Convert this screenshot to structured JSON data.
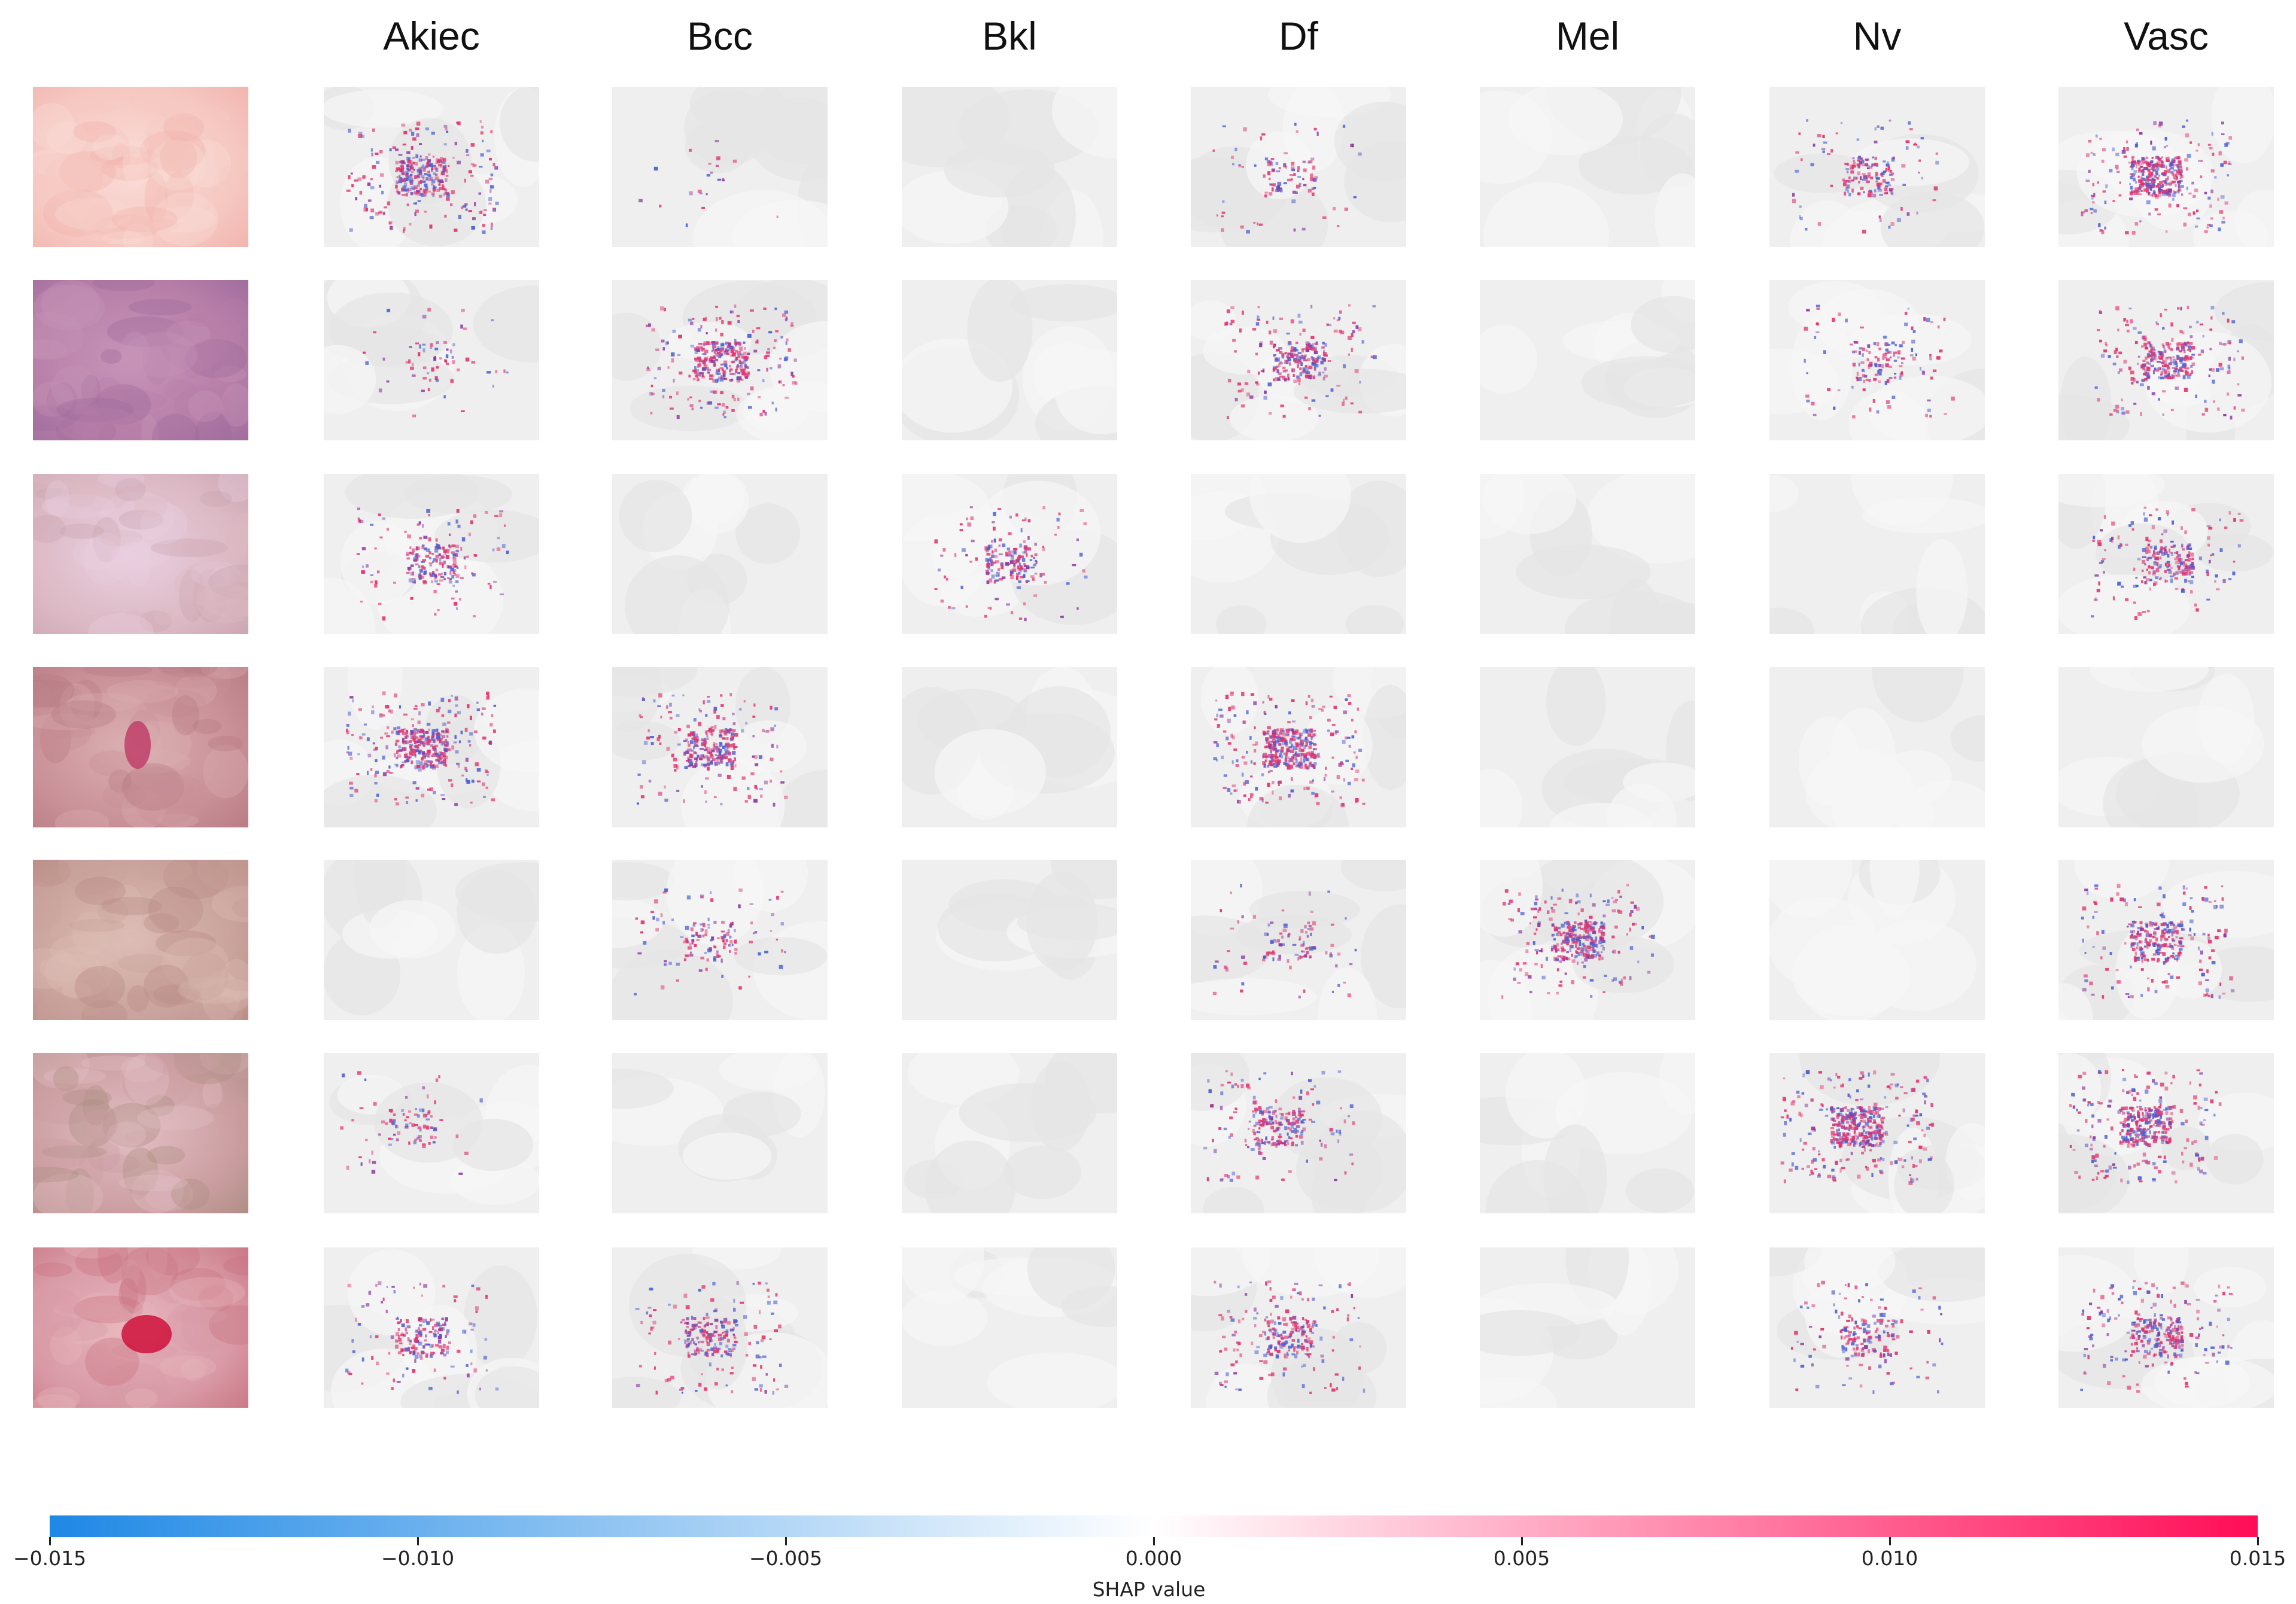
{
  "figure": {
    "columns": [
      "Akiec",
      "Bcc",
      "Bkl",
      "Df",
      "Mel",
      "Nv",
      "Vasc"
    ],
    "rows": [
      {
        "original_tone": [
          "#f6c8c2",
          "#f0b1aa",
          "#fadcd6"
        ],
        "intensity": [
          0.8,
          0.05,
          0.0,
          0.25,
          0.0,
          0.4,
          0.9
        ]
      },
      {
        "original_tone": [
          "#b77fa8",
          "#9b6a9c",
          "#c794b8"
        ],
        "intensity": [
          0.15,
          0.8,
          0.0,
          0.6,
          0.0,
          0.35,
          0.7
        ]
      },
      {
        "original_tone": [
          "#dcb9c4",
          "#c9a3b0",
          "#e9cfe0"
        ],
        "intensity": [
          0.5,
          0.0,
          0.45,
          0.0,
          0.0,
          0.0,
          0.55
        ]
      },
      {
        "original_tone": [
          "#c99098",
          "#b57880",
          "#dbb0b3"
        ],
        "intensity": [
          0.9,
          0.7,
          0.0,
          1.0,
          0.0,
          0.0,
          0.0
        ]
      },
      {
        "original_tone": [
          "#c9a39c",
          "#b88a84",
          "#dcbdb5"
        ],
        "intensity": [
          0.0,
          0.3,
          0.0,
          0.25,
          0.8,
          0.0,
          0.7
        ]
      },
      {
        "original_tone": [
          "#cc9fa2",
          "#a98b7f",
          "#e2bfc5"
        ],
        "intensity": [
          0.2,
          0.0,
          0.0,
          0.55,
          0.0,
          1.0,
          0.9
        ]
      },
      {
        "original_tone": [
          "#d89aa6",
          "#c8707f",
          "#e7b6be"
        ],
        "intensity": [
          0.45,
          0.55,
          0.0,
          0.55,
          0.0,
          0.45,
          0.65
        ]
      }
    ]
  },
  "colorbar": {
    "label": "SHAP value",
    "min": -0.015,
    "max": 0.015,
    "ticks": [
      "−0.015",
      "−0.010",
      "−0.005",
      "0.000",
      "0.005",
      "0.010",
      "0.015"
    ],
    "tick_values": [
      -0.015,
      -0.01,
      -0.005,
      0,
      0.005,
      0.01,
      0.015
    ],
    "negative_color": "#1e88e5",
    "zero_color": "#ffffff",
    "positive_color": "#ff0d57"
  }
}
